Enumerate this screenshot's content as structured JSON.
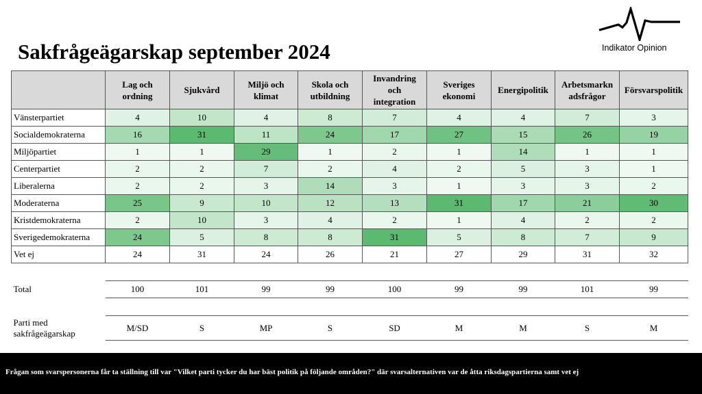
{
  "title": "Sakfrågeägarskap september 2024",
  "logo_text": "Indikator Opinion",
  "columns": [
    "Lag och ordning",
    "Sjukvård",
    "Miljö och klimat",
    "Skola och utbildning",
    "Invandring och integration",
    "Sveriges ekonomi",
    "Energipolitik",
    "Arbetsmarknadsfrågor",
    "Försvarspolitik"
  ],
  "column_display": [
    "Lag och\nordning",
    "Sjukvård",
    "Miljö och\nklimat",
    "Skola och\nutbildning",
    "Invandring\noch\nintegration",
    "Sveriges\nekonomi",
    "Energipolitik",
    "Arbetsmarkn\nadsfrågor",
    "Försvarspolitik"
  ],
  "rows": [
    {
      "party": "Vänsterpartiet",
      "values": [
        4,
        10,
        4,
        8,
        7,
        4,
        4,
        7,
        3
      ]
    },
    {
      "party": "Socialdemokraterna",
      "values": [
        16,
        31,
        11,
        24,
        17,
        27,
        15,
        26,
        19
      ]
    },
    {
      "party": "Miljöpartiet",
      "values": [
        1,
        1,
        29,
        1,
        2,
        1,
        14,
        1,
        1
      ]
    },
    {
      "party": "Centerpartiet",
      "values": [
        2,
        2,
        7,
        2,
        4,
        2,
        5,
        3,
        1
      ]
    },
    {
      "party": "Liberalerna",
      "values": [
        2,
        2,
        3,
        14,
        3,
        1,
        3,
        3,
        2
      ]
    },
    {
      "party": "Moderaterna",
      "values": [
        25,
        9,
        10,
        12,
        13,
        31,
        17,
        21,
        30
      ]
    },
    {
      "party": "Kristdemokraterna",
      "values": [
        2,
        10,
        3,
        4,
        2,
        1,
        4,
        2,
        2
      ]
    },
    {
      "party": "Sverigedemokraterna",
      "values": [
        24,
        5,
        8,
        8,
        31,
        5,
        8,
        7,
        9
      ]
    },
    {
      "party": "Vet ej",
      "values": [
        24,
        31,
        24,
        26,
        21,
        27,
        29,
        31,
        32
      ]
    }
  ],
  "total": {
    "label": "Total",
    "values": [
      100,
      101,
      99,
      99,
      100,
      99,
      99,
      101,
      99
    ]
  },
  "owner": {
    "label": "Parti med sakfrågeägarskap",
    "values": [
      "M/SD",
      "S",
      "MP",
      "S",
      "SD",
      "M",
      "M",
      "S",
      "M"
    ]
  },
  "footer": "Frågan som svarspersonerna får ta ställning till var \"Vilket parti tycker du har bäst politik på följande områden?\" där svarsalternativen var de åtta riksdagspartierna samt vet ej",
  "colors": {
    "header_bg": "#d9d9d9",
    "scale_low": "#f4fbf6",
    "scale_high": "#5bb970",
    "footer_bg": "#000000"
  }
}
